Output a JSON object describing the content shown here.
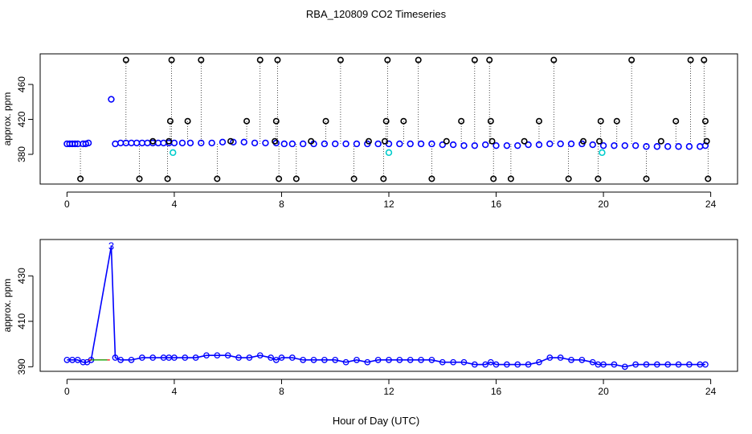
{
  "figure": {
    "title": "RBA_120809  CO2 Timeseries",
    "xlabel": "Hour of Day (UTC)"
  },
  "colors": {
    "axis": "#000000",
    "series_black": "#000000",
    "series_blue": "#0000ff",
    "series_cyan": "#00cccc",
    "series_red": "#ff0000",
    "series_green": "#00aa00",
    "dotted": "#000000"
  },
  "chart_data": [
    {
      "type": "scatter",
      "panel": "top",
      "ylabel": "approx. ppm",
      "xlim": [
        -1.0,
        25.0
      ],
      "ylim": [
        346,
        495
      ],
      "xticks": [
        0,
        4,
        8,
        12,
        16,
        20,
        24
      ],
      "yticks": [
        380,
        420,
        460
      ],
      "grid": false,
      "series": [
        {
          "color": "blue",
          "x": [
            0.0,
            0.1,
            0.2,
            0.3,
            0.4,
            0.6,
            0.7,
            0.8,
            1.8,
            2.0,
            2.2,
            2.4,
            2.6,
            2.8,
            3.0,
            3.2,
            3.4,
            3.6,
            3.8,
            4.0,
            4.3,
            4.6,
            5.0,
            5.4,
            5.8,
            6.2,
            6.6,
            7.0,
            7.4,
            7.8,
            8.1,
            8.4,
            8.8,
            9.2,
            9.6,
            10.0,
            10.4,
            10.8,
            11.2,
            11.6,
            12.0,
            12.4,
            12.8,
            13.2,
            13.6,
            14.0,
            14.4,
            14.8,
            15.2,
            15.6,
            16.0,
            16.4,
            16.8,
            17.2,
            17.6,
            18.0,
            18.4,
            18.8,
            19.2,
            19.6,
            20.0,
            20.4,
            20.8,
            21.2,
            21.6,
            22.0,
            22.4,
            22.8,
            23.2,
            23.6,
            23.8
          ],
          "y": [
            392,
            392,
            392,
            392,
            392,
            392,
            392,
            393,
            392,
            393,
            393,
            393,
            393,
            393,
            393,
            393,
            393,
            393,
            393,
            393,
            393,
            393,
            393,
            393,
            394,
            394,
            394,
            393,
            393,
            393,
            392,
            392,
            392,
            392,
            392,
            392,
            392,
            392,
            392,
            392,
            392,
            392,
            392,
            392,
            392,
            391,
            391,
            390,
            390,
            391,
            390,
            390,
            390,
            391,
            391,
            392,
            392,
            392,
            392,
            391,
            390,
            390,
            390,
            390,
            389,
            389,
            389,
            389,
            389,
            389,
            390
          ]
        },
        {
          "color": "blue",
          "x": [
            1.65
          ],
          "y": [
            443
          ]
        },
        {
          "color": "cyan",
          "x": [
            3.95,
            12.0,
            19.95
          ],
          "y": [
            382,
            382,
            382
          ]
        },
        {
          "color": "black",
          "x": [
            0.5,
            2.2,
            2.7,
            3.2,
            3.75,
            3.8,
            3.85,
            3.9,
            4.5,
            5.0,
            5.6,
            6.1,
            6.7,
            7.2,
            7.75,
            7.8,
            7.85,
            7.9,
            8.55,
            9.1,
            9.65,
            10.2,
            10.7,
            11.25,
            11.8,
            11.85,
            11.9,
            11.95,
            12.55,
            13.1,
            13.6,
            14.15,
            14.7,
            15.2,
            15.75,
            15.8,
            15.85,
            15.9,
            16.55,
            17.05,
            17.6,
            18.15,
            18.7,
            19.25,
            19.8,
            19.85,
            19.9,
            20.5,
            21.05,
            21.6,
            22.15,
            22.7,
            23.25,
            23.75,
            23.8,
            23.85,
            23.9
          ],
          "y": [
            352,
            488,
            352,
            395,
            352,
            395,
            418,
            488,
            418,
            488,
            352,
            395,
            418,
            488,
            395,
            418,
            488,
            352,
            352,
            395,
            418,
            488,
            352,
            395,
            352,
            395,
            418,
            488,
            418,
            488,
            352,
            395,
            418,
            488,
            488,
            418,
            395,
            352,
            352,
            395,
            418,
            488,
            352,
            395,
            352,
            395,
            418,
            418,
            488,
            352,
            395,
            418,
            488,
            488,
            418,
            395,
            352
          ]
        }
      ]
    },
    {
      "type": "line",
      "panel": "bottom",
      "ylabel": "approx. ppm",
      "xlim": [
        -1.0,
        25.0
      ],
      "ylim": [
        388,
        446
      ],
      "xticks": [
        0,
        4,
        8,
        12,
        16,
        20,
        24
      ],
      "yticks": [
        390,
        410,
        430
      ],
      "grid": false,
      "annotations": [
        {
          "text": "3",
          "x": 1.65,
          "y": 443
        }
      ],
      "series": [
        {
          "color": "blue",
          "x": [
            0.0,
            0.2,
            0.4,
            0.6,
            0.75,
            0.9,
            1.65,
            1.8,
            2.0,
            2.4,
            2.8,
            3.2,
            3.6,
            3.8,
            4.0,
            4.4,
            4.8,
            5.2,
            5.6,
            6.0,
            6.4,
            6.8,
            7.2,
            7.6,
            7.8,
            8.0,
            8.4,
            8.8,
            9.2,
            9.6,
            10.0,
            10.4,
            10.8,
            11.2,
            11.6,
            12.0,
            12.4,
            12.8,
            13.2,
            13.6,
            14.0,
            14.4,
            14.8,
            15.2,
            15.6,
            15.8,
            16.0,
            16.4,
            16.8,
            17.2,
            17.6,
            18.0,
            18.4,
            18.8,
            19.2,
            19.6,
            19.8,
            20.0,
            20.4,
            20.8,
            21.2,
            21.6,
            22.0,
            22.4,
            22.8,
            23.2,
            23.6,
            23.8
          ],
          "y": [
            393,
            393,
            393,
            392,
            392,
            393,
            443,
            394,
            393,
            393,
            394,
            394,
            394,
            394,
            394,
            394,
            394,
            395,
            395,
            395,
            394,
            394,
            395,
            394,
            393,
            394,
            394,
            393,
            393,
            393,
            393,
            392,
            393,
            392,
            393,
            393,
            393,
            393,
            393,
            393,
            392,
            392,
            392,
            391,
            391,
            392,
            391,
            391,
            391,
            391,
            392,
            394,
            394,
            393,
            393,
            392,
            391,
            391,
            391,
            390,
            391,
            391,
            391,
            391,
            391,
            391,
            391,
            391
          ]
        },
        {
          "color": "red",
          "x": [
            0.8,
            1.0,
            1.2,
            1.4,
            1.6
          ],
          "y": [
            393,
            393,
            393,
            393,
            393
          ]
        },
        {
          "color": "green",
          "x": [
            0.9,
            1.1,
            1.3,
            1.5
          ],
          "y": [
            393,
            393,
            393,
            393
          ]
        }
      ]
    }
  ]
}
